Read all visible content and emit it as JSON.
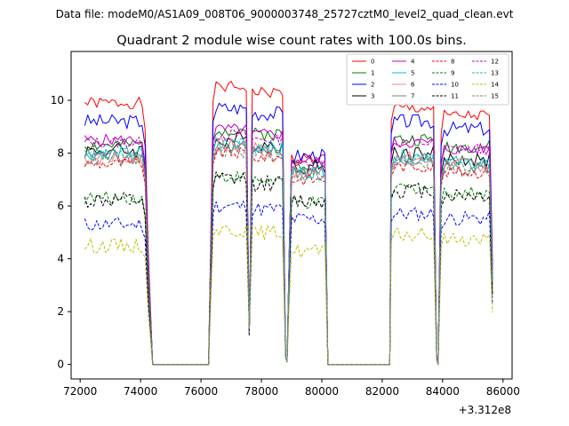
{
  "header_text": "Data file: modeM0/AS1A09_008T06_9000003748_25727cztM0_level2_quad_clean.evt",
  "chart_data": {
    "type": "line",
    "title": "Quadrant 2 module wise count rates with 100.0s bins.",
    "xlabel": "",
    "ylabel": "",
    "x_offset_label": "+3.312e8",
    "xlim": [
      71700,
      86300
    ],
    "ylim": [
      -0.55,
      11.85
    ],
    "x_ticks": [
      72000,
      74000,
      76000,
      78000,
      80000,
      82000,
      84000,
      86000
    ],
    "x_tick_labels": [
      "72000",
      "74000",
      "76000",
      "78000",
      "80000",
      "82000",
      "84000",
      "86000"
    ],
    "y_ticks": [
      0,
      2,
      4,
      6,
      8,
      10
    ],
    "y_tick_labels": [
      "0",
      "2",
      "4",
      "6",
      "8",
      "10"
    ],
    "legend_position": "top-right",
    "bin_seconds": 100,
    "gaps": [
      [
        74450,
        76350
      ],
      [
        80250,
        82250
      ]
    ],
    "dips": [
      [
        77600,
        1.1
      ],
      [
        78850,
        0.1
      ],
      [
        83850,
        0.0
      ]
    ],
    "series": [
      {
        "name": "0",
        "color": "#ff0000",
        "style": "solid",
        "levels": [
          9.9,
          10.5,
          7.8,
          9.7
        ]
      },
      {
        "name": "1",
        "color": "#008000",
        "style": "solid",
        "levels": [
          8.3,
          8.9,
          7.6,
          8.5
        ]
      },
      {
        "name": "2",
        "color": "#0000ff",
        "style": "solid",
        "levels": [
          9.2,
          9.7,
          7.9,
          9.2
        ]
      },
      {
        "name": "3",
        "color": "#000000",
        "style": "solid",
        "levels": [
          8.1,
          8.5,
          7.5,
          8.0
        ]
      },
      {
        "name": "4",
        "color": "#bf00bf",
        "style": "solid",
        "levels": [
          8.5,
          8.9,
          7.7,
          8.4
        ]
      },
      {
        "name": "5",
        "color": "#00bfbf",
        "style": "solid",
        "levels": [
          8.0,
          8.4,
          7.3,
          7.9
        ]
      },
      {
        "name": "6",
        "color": "#ff7f7f",
        "style": "solid",
        "levels": [
          7.8,
          8.3,
          7.2,
          7.8
        ]
      },
      {
        "name": "7",
        "color": "#7f7f7f",
        "style": "solid",
        "levels": [
          7.9,
          8.2,
          7.3,
          7.7
        ]
      },
      {
        "name": "8",
        "color": "#ff0000",
        "style": "dashed",
        "levels": [
          7.6,
          8.0,
          7.0,
          7.5
        ]
      },
      {
        "name": "9",
        "color": "#008000",
        "style": "dashed",
        "levels": [
          6.3,
          7.1,
          6.1,
          6.7
        ]
      },
      {
        "name": "10",
        "color": "#0000ff",
        "style": "dashed",
        "levels": [
          5.3,
          6.0,
          5.5,
          5.7
        ]
      },
      {
        "name": "11",
        "color": "#000000",
        "style": "dashed",
        "levels": [
          6.2,
          7.0,
          6.2,
          6.6
        ]
      },
      {
        "name": "12",
        "color": "#bf00bf",
        "style": "dashed",
        "levels": [
          8.4,
          8.7,
          7.6,
          8.4
        ]
      },
      {
        "name": "13",
        "color": "#00bfbf",
        "style": "dashed",
        "levels": [
          7.9,
          8.3,
          7.2,
          7.8
        ]
      },
      {
        "name": "14",
        "color": "#bfbf00",
        "style": "dashed",
        "levels": [
          4.5,
          5.1,
          4.3,
          4.9
        ]
      },
      {
        "name": "15",
        "color": "#7f7f7f",
        "style": "dashed",
        "levels": [
          7.8,
          8.1,
          7.2,
          7.7
        ]
      }
    ]
  }
}
